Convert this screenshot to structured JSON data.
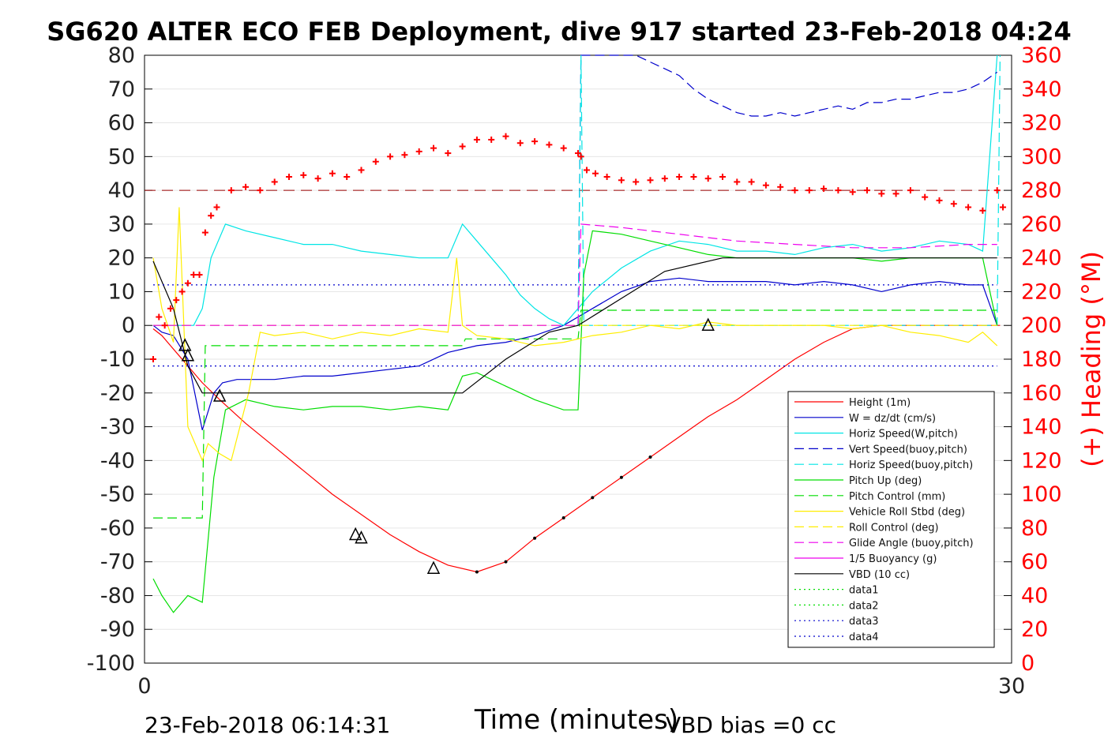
{
  "chart_data": {
    "type": "line",
    "title": "SG620 ALTER ECO FEB Deployment, dive 917 started 23-Feb-2018 04:24",
    "xlabel": "Time (minutes)",
    "ylabel_right": "(+) Heading (°M)",
    "xlim": [
      0,
      30
    ],
    "ylim": [
      -100,
      80
    ],
    "ylim_right": [
      0,
      360
    ],
    "x_ticks": [
      "0",
      "30"
    ],
    "y_ticks": [
      "80",
      "70",
      "60",
      "50",
      "40",
      "30",
      "20",
      "10",
      "0",
      "-10",
      "-20",
      "-30",
      "-40",
      "-50",
      "-60",
      "-70",
      "-80",
      "-90",
      "-100"
    ],
    "y_right_ticks": [
      "360",
      "340",
      "320",
      "300",
      "280",
      "260",
      "240",
      "220",
      "200",
      "180",
      "160",
      "140",
      "120",
      "100",
      "80",
      "60",
      "40",
      "20",
      "0"
    ],
    "footer_left": "23-Feb-2018 06:14:31",
    "footer_right": "VBD bias =0 cc",
    "grid": true,
    "legend_position": "bottom-right",
    "colors": {
      "height": "#ff0000",
      "w": "#0000cc",
      "horiz_speed": "#00e5e5",
      "vert_speed_buoy": "#0000cc",
      "pitch": "#00dd00",
      "roll": "#ffee00",
      "glide": "#ee00ee",
      "vbd": "#000000",
      "heading": "#ff0000",
      "ref_dark_red": "#990000"
    },
    "legend": [
      {
        "label": "Height (1m)",
        "color": "#ff0000",
        "dash": ""
      },
      {
        "label": "W = dz/dt (cm/s)",
        "color": "#0000cc",
        "dash": ""
      },
      {
        "label": "Horiz Speed(W,pitch)",
        "color": "#00e5e5",
        "dash": ""
      },
      {
        "label": "Vert Speed(buoy,pitch)",
        "color": "#0000cc",
        "dash": "12,6"
      },
      {
        "label": "Horiz Speed(buoy,pitch)",
        "color": "#00e5e5",
        "dash": "12,6"
      },
      {
        "label": "Pitch Up (deg)",
        "color": "#00dd00",
        "dash": ""
      },
      {
        "label": "Pitch Control (mm)",
        "color": "#00dd00",
        "dash": "12,6"
      },
      {
        "label": "Vehicle Roll Stbd (deg)",
        "color": "#ffee00",
        "dash": ""
      },
      {
        "label": "Roll Control (deg)",
        "color": "#ffee00",
        "dash": "12,6"
      },
      {
        "label": "Glide Angle (buoy,pitch)",
        "color": "#ee00ee",
        "dash": "12,6"
      },
      {
        "label": "1/5 Buoyancy (g)",
        "color": "#ee00ee",
        "dash": ""
      },
      {
        "label": "VBD (10 cc)",
        "color": "#000000",
        "dash": ""
      },
      {
        "label": "data1",
        "color": "#00dd00",
        "dash": "2,4"
      },
      {
        "label": "data2",
        "color": "#00dd00",
        "dash": "2,4"
      },
      {
        "label": "data3",
        "color": "#0000cc",
        "dash": "2,4"
      },
      {
        "label": "data4",
        "color": "#0000cc",
        "dash": "2,4"
      }
    ],
    "series": [
      {
        "name": "Height (1m)",
        "axis": "left",
        "style": "solid",
        "color": "#ff0000",
        "x": [
          0.3,
          0.6,
          0.9,
          1.2,
          1.5,
          2.0,
          2.6,
          3.5,
          4.5,
          5.5,
          6.5,
          7.5,
          8.5,
          9.5,
          10.5,
          11.5,
          12.5,
          13.5,
          14.5,
          15.5,
          16.5,
          17.5,
          18.5,
          19.5,
          20.5,
          21.5,
          22.5,
          23.5,
          24.5,
          25.5,
          26.5,
          27.5,
          28.5,
          29.0,
          29.6
        ],
        "y": [
          -1,
          -3,
          -6,
          -9,
          -12,
          -17,
          -22,
          -29,
          -36,
          -43,
          -50,
          -56,
          -62,
          -67,
          -71,
          -73,
          -70,
          -63,
          -57,
          -51,
          -45,
          -39,
          -33,
          -27,
          -22,
          -16,
          -10,
          -5,
          -1,
          0,
          0,
          0,
          0,
          0,
          0
        ]
      },
      {
        "name": "W = dz/dt (cm/s)",
        "axis": "left",
        "style": "solid",
        "color": "#0000cc",
        "x": [
          0.3,
          0.6,
          1.0,
          1.5,
          2.0,
          2.4,
          2.7,
          3.2,
          3.8,
          4.5,
          5.5,
          6.5,
          7.5,
          8.5,
          9.5,
          10.5,
          11.5,
          12.5,
          13.5,
          14.5,
          15.5,
          16.5,
          17.5,
          18.5,
          19.5,
          20.5,
          21.5,
          22.5,
          23.5,
          24.5,
          25.5,
          26.5,
          27.5,
          28.5,
          29.0,
          29.5
        ],
        "y": [
          0,
          -2,
          -3,
          -10,
          -31,
          -20,
          -17,
          -16,
          -16,
          -16,
          -15,
          -15,
          -14,
          -13,
          -12,
          -8,
          -6,
          -5,
          -3,
          0,
          5,
          10,
          13,
          14,
          13,
          13,
          13,
          12,
          13,
          12,
          10,
          12,
          13,
          12,
          12,
          0
        ]
      },
      {
        "name": "Horiz Speed(W,pitch)",
        "axis": "left",
        "style": "solid",
        "color": "#00e5e5",
        "x": [
          0.3,
          0.8,
          1.3,
          1.7,
          2.0,
          2.3,
          2.8,
          3.5,
          4.5,
          5.5,
          6.5,
          7.5,
          8.5,
          9.5,
          10.5,
          11.0,
          11.5,
          12.0,
          12.5,
          13.0,
          13.5,
          14.0,
          14.5,
          15.0,
          15.5,
          16.5,
          17.5,
          18.5,
          19.5,
          20.5,
          21.5,
          22.5,
          23.5,
          24.5,
          25.5,
          26.5,
          27.5,
          28.5,
          29.0,
          29.5
        ],
        "y": [
          0,
          0,
          0,
          0,
          5,
          20,
          30,
          28,
          26,
          24,
          24,
          22,
          21,
          20,
          20,
          30,
          25,
          20,
          15,
          9,
          5,
          2,
          0,
          5,
          10,
          17,
          22,
          25,
          24,
          22,
          22,
          21,
          23,
          24,
          22,
          23,
          25,
          24,
          22,
          80
        ]
      },
      {
        "name": "Vert Speed(buoy,pitch)",
        "axis": "left",
        "style": "dash",
        "color": "#0000cc",
        "x": [
          15.0,
          15.1,
          15.5,
          16.0,
          16.5,
          17.0,
          17.5,
          18.0,
          18.5,
          19.0,
          19.5,
          20.0,
          20.5,
          21.0,
          21.5,
          22.0,
          22.5,
          23.0,
          23.5,
          24.0,
          24.5,
          25.0,
          25.5,
          26.0,
          26.5,
          27.0,
          27.5,
          28.0,
          28.5,
          29.0,
          29.5
        ],
        "y": [
          0,
          80,
          80,
          80,
          80,
          80,
          78,
          76,
          74,
          70,
          67,
          65,
          63,
          62,
          62,
          63,
          62,
          63,
          64,
          65,
          64,
          66,
          66,
          67,
          67,
          68,
          69,
          69,
          70,
          72,
          75
        ]
      },
      {
        "name": "Horiz Speed(buoy,pitch)",
        "axis": "left",
        "style": "dash",
        "color": "#00e5e5",
        "x": [
          15.0,
          15.1,
          15.2,
          29.5,
          29.6
        ],
        "y": [
          0,
          80,
          0,
          0,
          80
        ]
      },
      {
        "name": "Pitch Up (deg)",
        "axis": "left",
        "style": "solid",
        "color": "#00dd00",
        "x": [
          0.3,
          0.6,
          1.0,
          1.5,
          2.0,
          2.4,
          2.8,
          3.5,
          4.5,
          5.5,
          6.5,
          7.5,
          8.5,
          9.5,
          10.5,
          11.0,
          11.5,
          12.5,
          13.5,
          14.5,
          15.0,
          15.2,
          15.5,
          16.5,
          17.5,
          18.5,
          19.5,
          20.5,
          21.5,
          22.5,
          23.5,
          24.5,
          25.5,
          26.5,
          27.5,
          28.5,
          29.0,
          29.5
        ],
        "y": [
          -75,
          -80,
          -85,
          -80,
          -82,
          -45,
          -25,
          -22,
          -24,
          -25,
          -24,
          -24,
          -25,
          -24,
          -25,
          -15,
          -14,
          -18,
          -22,
          -25,
          -25,
          15,
          28,
          27,
          25,
          23,
          21,
          20,
          20,
          20,
          20,
          20,
          19,
          20,
          20,
          20,
          20,
          0
        ]
      },
      {
        "name": "Pitch Control (mm)",
        "axis": "left",
        "style": "dash",
        "color": "#00dd00",
        "x": [
          0.3,
          2.0,
          2.1,
          11.0,
          11.1,
          15.0,
          15.1,
          29.5
        ],
        "y": [
          -57,
          -57,
          -6,
          -6,
          -4,
          -4,
          4.5,
          4.5
        ]
      },
      {
        "name": "Vehicle Roll Stbd (deg)",
        "axis": "left",
        "style": "solid",
        "color": "#ffee00",
        "x": [
          0.3,
          0.6,
          1.0,
          1.2,
          1.5,
          2.0,
          2.2,
          2.6,
          3.0,
          3.3,
          3.6,
          4.0,
          4.5,
          5.5,
          6.5,
          7.5,
          8.5,
          9.5,
          10.5,
          10.8,
          11.0,
          11.5,
          12.5,
          13.5,
          14.5,
          15.5,
          16.5,
          17.5,
          18.5,
          19.5,
          20.5,
          21.5,
          22.5,
          23.5,
          24.5,
          25.5,
          26.5,
          27.5,
          28.5,
          29.0,
          29.5
        ],
        "y": [
          20,
          5,
          -5,
          35,
          -30,
          -40,
          -35,
          -38,
          -40,
          -30,
          -20,
          -2,
          -3,
          -2,
          -4,
          -2,
          -3,
          -1,
          -2,
          20,
          0,
          -3,
          -4,
          -6,
          -5,
          -3,
          -2,
          0,
          -1,
          1,
          0,
          0,
          0,
          0,
          -1,
          0,
          -2,
          -3,
          -5,
          -2,
          -6
        ]
      },
      {
        "name": "Roll Control (deg)",
        "axis": "left",
        "style": "dash",
        "color": "#ffee00",
        "x": [
          0.3,
          29.5
        ],
        "y": [
          0,
          0
        ]
      },
      {
        "name": "Glide Angle (buoy,pitch)",
        "axis": "left",
        "style": "dash",
        "color": "#ee00ee",
        "x": [
          0.3,
          15.0,
          15.1,
          16.5,
          18.5,
          20.5,
          22.5,
          24.5,
          26.5,
          28.5,
          29.5
        ],
        "y": [
          0,
          0,
          30,
          29,
          27,
          25,
          24,
          23,
          23,
          24,
          24
        ]
      },
      {
        "name": "VBD (10 cc)",
        "axis": "left",
        "style": "solid",
        "color": "#000000",
        "x": [
          0.3,
          1.0,
          1.5,
          2.0,
          11.0,
          12.5,
          14.0,
          15.0,
          18.0,
          20.0,
          29.5
        ],
        "y": [
          19,
          5,
          -12,
          -20,
          -20,
          -10,
          -2,
          0,
          16,
          20,
          20
        ]
      },
      {
        "name": "data3",
        "axis": "left",
        "style": "dot",
        "color": "#0000cc",
        "x": [
          0.3,
          29.5
        ],
        "y": [
          12,
          12
        ]
      },
      {
        "name": "data4",
        "axis": "left",
        "style": "dot",
        "color": "#0000cc",
        "x": [
          0.3,
          29.5
        ],
        "y": [
          -12,
          -12
        ]
      },
      {
        "name": "Heading",
        "axis": "right",
        "style": "markers",
        "color": "#ff0000",
        "x": [
          0.3,
          0.5,
          0.7,
          0.9,
          1.1,
          1.3,
          1.5,
          1.7,
          1.9,
          2.1,
          2.3,
          2.5,
          3.0,
          3.5,
          4.0,
          4.5,
          5.0,
          5.5,
          6.0,
          6.5,
          7.0,
          7.5,
          8.0,
          8.5,
          9.0,
          9.5,
          10.0,
          10.5,
          11.0,
          11.5,
          12.0,
          12.5,
          13.0,
          13.5,
          14.0,
          14.5,
          15.0,
          15.1,
          15.3,
          15.6,
          16.0,
          16.5,
          17.0,
          17.5,
          18.0,
          18.5,
          19.0,
          19.5,
          20.0,
          20.5,
          21.0,
          21.5,
          22.0,
          22.5,
          23.0,
          23.5,
          24.0,
          24.5,
          25.0,
          25.5,
          26.0,
          26.5,
          27.0,
          27.5,
          28.0,
          28.5,
          29.0,
          29.5,
          29.7
        ],
        "y": [
          180,
          205,
          200,
          210,
          215,
          220,
          225,
          230,
          230,
          255,
          265,
          270,
          280,
          282,
          280,
          285,
          288,
          289,
          287,
          290,
          288,
          292,
          297,
          300,
          301,
          303,
          305,
          302,
          306,
          310,
          310,
          312,
          308,
          309,
          307,
          305,
          302,
          300,
          292,
          290,
          288,
          286,
          285,
          286,
          287,
          288,
          288,
          287,
          288,
          285,
          285,
          283,
          282,
          280,
          280,
          281,
          280,
          279,
          280,
          278,
          278,
          280,
          276,
          274,
          272,
          270,
          268,
          280,
          270
        ]
      }
    ]
  }
}
